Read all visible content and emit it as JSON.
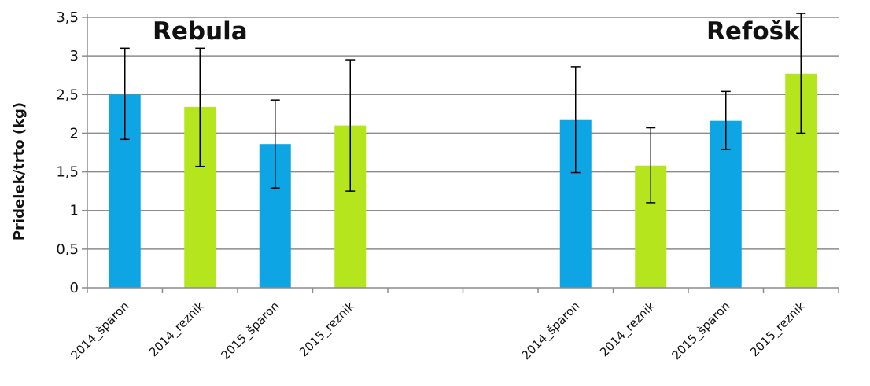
{
  "chart_data": {
    "type": "bar",
    "ylabel": "Pridelek/trto (kg)",
    "ylim": [
      0,
      3.5
    ],
    "yticks": [
      "0",
      "0,5",
      "1",
      "1,5",
      "2",
      "2,5",
      "3",
      "3,5"
    ],
    "grid": true,
    "categories": [
      "2014_šparon",
      "2014_reznik",
      "2015_šparon",
      "2015_reznik",
      "",
      "",
      "2014_šparon",
      "2014_reznik",
      "2015_šparon",
      "2015_reznik"
    ],
    "groups": [
      {
        "label": "Rebula"
      },
      {
        "label": "Refošk"
      }
    ],
    "colors": {
      "sparon": "#0ea5e5",
      "reznik": "#b5e61d",
      "grid": "#8c8c8c",
      "axis": "#8c8c8c",
      "error": "#000000"
    },
    "bars": [
      {
        "category": "2014_šparon",
        "group": "Rebula",
        "value": 2.5,
        "err_low": 1.92,
        "err_high": 3.1,
        "color_key": "sparon"
      },
      {
        "category": "2014_reznik",
        "group": "Rebula",
        "value": 2.34,
        "err_low": 1.57,
        "err_high": 3.1,
        "color_key": "reznik"
      },
      {
        "category": "2015_šparon",
        "group": "Rebula",
        "value": 1.86,
        "err_low": 1.29,
        "err_high": 2.43,
        "color_key": "sparon"
      },
      {
        "category": "2015_reznik",
        "group": "Rebula",
        "value": 2.1,
        "err_low": 1.25,
        "err_high": 2.95,
        "color_key": "reznik"
      },
      {
        "category": "2014_šparon",
        "group": "Refošk",
        "value": 2.17,
        "err_low": 1.49,
        "err_high": 2.86,
        "color_key": "sparon"
      },
      {
        "category": "2014_reznik",
        "group": "Refošk",
        "value": 1.58,
        "err_low": 1.1,
        "err_high": 2.07,
        "color_key": "reznik"
      },
      {
        "category": "2015_šparon",
        "group": "Refošk",
        "value": 2.16,
        "err_low": 1.79,
        "err_high": 2.54,
        "color_key": "sparon"
      },
      {
        "category": "2015_reznik",
        "group": "Refošk",
        "value": 2.77,
        "err_low": 2.0,
        "err_high": 3.55,
        "color_key": "reznik"
      }
    ]
  }
}
